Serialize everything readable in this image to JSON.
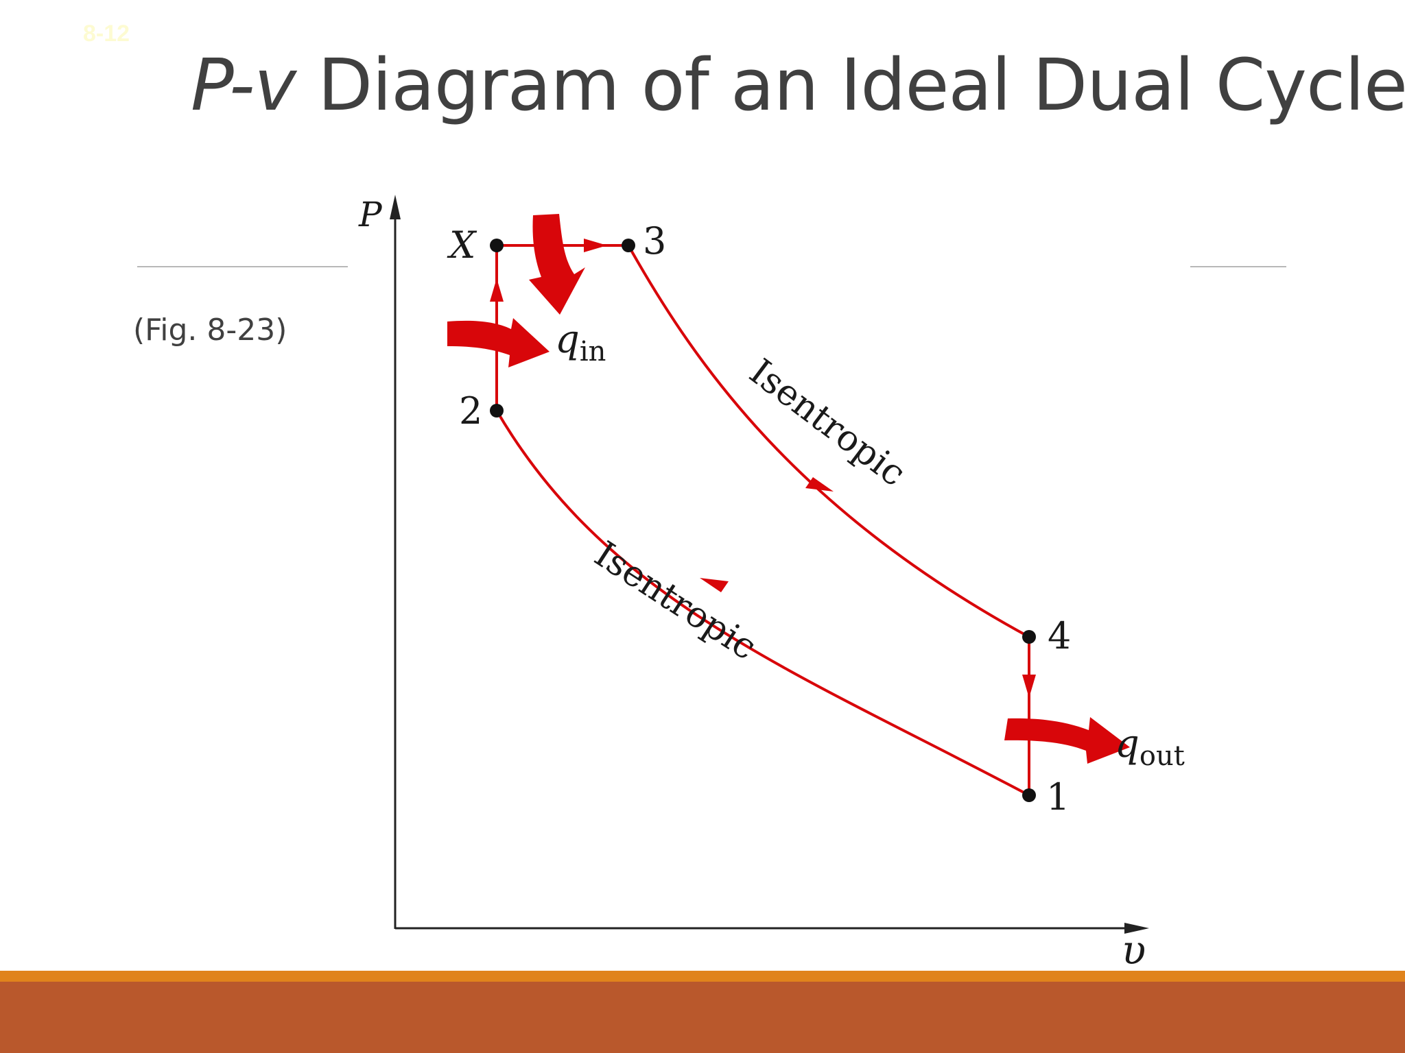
{
  "slide": {
    "number": "8-12",
    "title_italic": "P-v",
    "title_rest": " Diagram of an Ideal Dual Cycle",
    "figure_reference": "(Fig. 8-23)"
  },
  "diagram": {
    "axis_p_label": "P",
    "axis_v_label": "υ",
    "point_x_label": "X",
    "point_3_label": "3",
    "point_2_label": "2",
    "point_4_label": "4",
    "point_1_label": "1",
    "q_in_symbol": "q",
    "q_in_subscript": "in",
    "q_out_symbol": "q",
    "q_out_subscript": "out",
    "process_expansion_label": "Isentropic",
    "process_compression_label": "Isentropic"
  },
  "colors": {
    "cycle": "#d8060a",
    "axis": "#222222",
    "title": "#404040",
    "footer_bar": "#b9582c",
    "footer_stripe": "#e0831c"
  }
}
